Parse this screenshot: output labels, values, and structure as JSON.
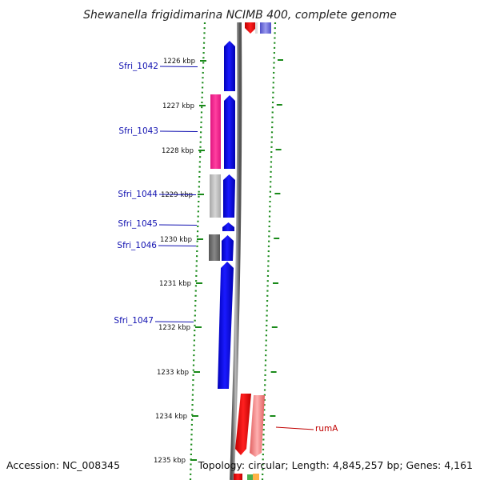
{
  "title": "Shewanella frigidimarina NCIMB 400, complete genome",
  "footer": {
    "accession": "Accession: NC_008345",
    "topology": "Topology: circular; Length: 4,845,257 bp; Genes: 4,161"
  },
  "ticks": [
    "1226 kbp",
    "1227 kbp",
    "1228 kbp",
    "1229 kbp",
    "1230 kbp",
    "1231 kbp",
    "1232 kbp",
    "1233 kbp",
    "1234 kbp",
    "1235 kbp"
  ],
  "gene_labels": [
    {
      "name": "Sfri_1042",
      "color": "#1010b0"
    },
    {
      "name": "Sfri_1043",
      "color": "#1010b0"
    },
    {
      "name": "Sfri_1044",
      "color": "#1010b0"
    },
    {
      "name": "Sfri_1045",
      "color": "#1010b0"
    },
    {
      "name": "Sfri_1046",
      "color": "#1010b0"
    },
    {
      "name": "Sfri_1047",
      "color": "#1010b0"
    },
    {
      "name": "rumA",
      "color": "#c00000"
    }
  ],
  "colors": {
    "forward_gene": "#0000ee",
    "reverse_gene": "#ff0000",
    "cog_pink": "#ff3399",
    "cog_light_gray": "#c0c0c0",
    "cog_dark_gray": "#707070",
    "cog_light_red": "#f08080",
    "backbone": "#8a8a8a",
    "ticks": "#1a8a1a"
  }
}
